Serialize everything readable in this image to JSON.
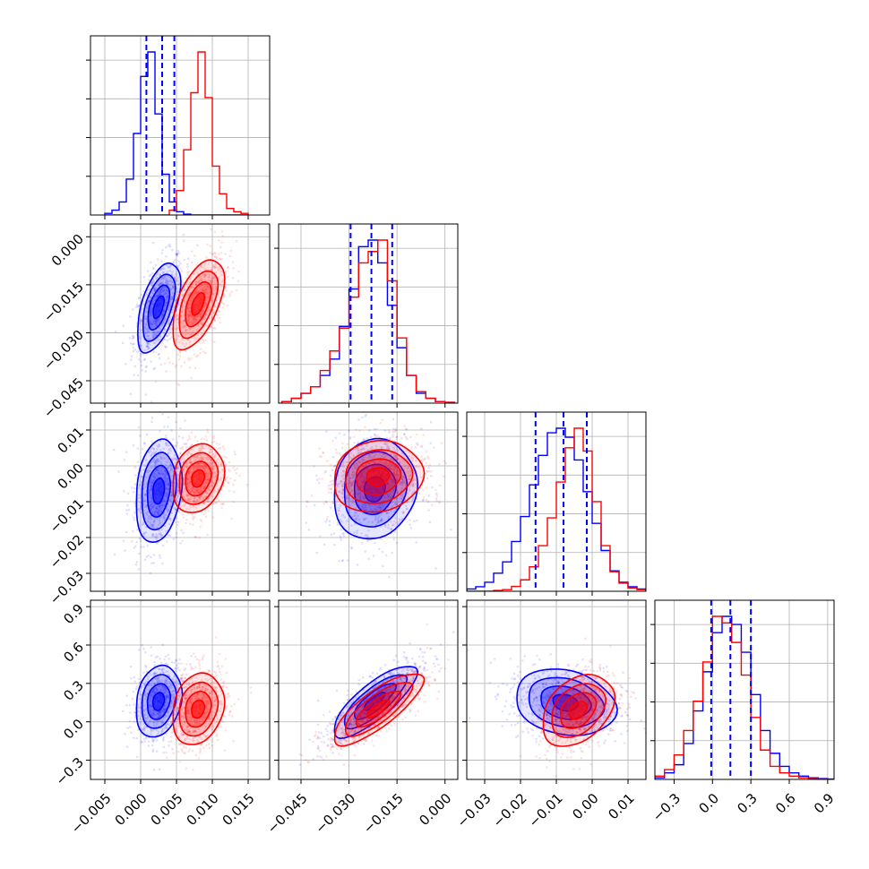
{
  "chart_data": {
    "type": "corner",
    "series": [
      {
        "name": "",
        "color": "#0000ff"
      },
      {
        "name": "",
        "color": "#ff0000"
      }
    ],
    "grid": true,
    "params": [
      {
        "range": [
          -0.007,
          0.018
        ],
        "ticks": [
          -0.005,
          0.0,
          0.005,
          0.01,
          0.015
        ],
        "tick_labels": [
          "−0.005",
          "0.000",
          "0.005",
          "0.010",
          "0.015"
        ]
      },
      {
        "range": [
          -0.052,
          0.004
        ],
        "ticks": [
          -0.045,
          -0.03,
          -0.015,
          0.0
        ],
        "tick_labels": [
          "−0.045",
          "−0.030",
          "−0.015",
          "0.000"
        ]
      },
      {
        "range": [
          -0.035,
          0.015
        ],
        "ticks": [
          -0.03,
          -0.02,
          -0.01,
          0.0,
          0.01
        ],
        "tick_labels": [
          "−0.03",
          "−0.02",
          "−0.01",
          "0.00",
          "0.01"
        ]
      },
      {
        "range": [
          -0.45,
          0.95
        ],
        "ticks": [
          -0.3,
          0.0,
          0.3,
          0.6,
          0.9
        ],
        "tick_labels": [
          "−0.3",
          "0.0",
          "0.3",
          "0.6",
          "0.9"
        ]
      }
    ],
    "quantiles": [
      [
        0.0008,
        0.003,
        0.0047
      ],
      [
        -0.0295,
        -0.023,
        -0.0165
      ],
      [
        -0.0158,
        -0.008,
        -0.0015
      ],
      [
        -0.01,
        0.14,
        0.3
      ]
    ],
    "histograms": [
      {
        "edges": [
          -0.005,
          -0.004,
          -0.003,
          -0.002,
          -0.001,
          0.0,
          0.001,
          0.002,
          0.003,
          0.004,
          0.005,
          0.006,
          0.007,
          0.008,
          0.009,
          0.01,
          0.011,
          0.012,
          0.013,
          0.014,
          0.015
        ],
        "blue": [
          0.01,
          0.03,
          0.08,
          0.22,
          0.5,
          0.85,
          1.0,
          0.62,
          0.25,
          0.08,
          0.02,
          0.005,
          0,
          0,
          0,
          0,
          0,
          0,
          0,
          0
        ],
        "red": [
          0,
          0,
          0,
          0,
          0,
          0,
          0,
          0,
          0,
          0.03,
          0.15,
          0.4,
          0.75,
          1.0,
          0.72,
          0.3,
          0.13,
          0.04,
          0.02,
          0.01
        ]
      },
      {
        "edges": [
          -0.051,
          -0.048,
          -0.045,
          -0.042,
          -0.039,
          -0.036,
          -0.033,
          -0.03,
          -0.027,
          -0.024,
          -0.021,
          -0.018,
          -0.015,
          -0.012,
          -0.009,
          -0.006,
          -0.003,
          0.0,
          0.003
        ],
        "blue": [
          0.01,
          0.03,
          0.06,
          0.1,
          0.17,
          0.27,
          0.47,
          0.7,
          0.96,
          1.0,
          0.86,
          0.6,
          0.34,
          0.17,
          0.06,
          0.03,
          0.01,
          0.005
        ],
        "red": [
          0.01,
          0.03,
          0.06,
          0.1,
          0.2,
          0.32,
          0.46,
          0.65,
          0.86,
          0.93,
          1.0,
          0.75,
          0.4,
          0.17,
          0.07,
          0.03,
          0.01,
          0.005
        ]
      },
      {
        "edges": [
          -0.035,
          -0.0325,
          -0.03,
          -0.0275,
          -0.025,
          -0.0225,
          -0.02,
          -0.0175,
          -0.015,
          -0.0125,
          -0.01,
          -0.0075,
          -0.005,
          -0.0025,
          0.0,
          0.0025,
          0.005,
          0.0075,
          0.01,
          0.0125,
          0.015
        ],
        "blue": [
          0.01,
          0.02,
          0.04,
          0.08,
          0.13,
          0.22,
          0.33,
          0.47,
          0.6,
          0.7,
          0.72,
          0.68,
          0.58,
          0.44,
          0.3,
          0.18,
          0.09,
          0.04,
          0.02,
          0.01
        ],
        "red": [
          0,
          0,
          0,
          0.005,
          0.01,
          0.03,
          0.07,
          0.15,
          0.28,
          0.45,
          0.67,
          0.88,
          1.0,
          0.86,
          0.55,
          0.28,
          0.12,
          0.05,
          0.02,
          0.01
        ]
      },
      {
        "edges": [
          -0.45,
          -0.375,
          -0.3,
          -0.225,
          -0.15,
          -0.075,
          0.0,
          0.075,
          0.15,
          0.225,
          0.3,
          0.375,
          0.45,
          0.525,
          0.6,
          0.675,
          0.75,
          0.825,
          0.9,
          0.95
        ],
        "blue": [
          0.01,
          0.04,
          0.09,
          0.22,
          0.42,
          0.66,
          0.9,
          1.0,
          0.95,
          0.78,
          0.52,
          0.3,
          0.16,
          0.08,
          0.04,
          0.02,
          0.01,
          0.005,
          0.002
        ],
        "red": [
          0.02,
          0.06,
          0.15,
          0.3,
          0.48,
          0.72,
          1.0,
          0.96,
          0.84,
          0.64,
          0.38,
          0.18,
          0.08,
          0.04,
          0.02,
          0.01,
          0.005,
          0.002,
          0
        ]
      }
    ],
    "pairs": [
      {
        "i": 1,
        "j": 0,
        "blue": {
          "center": [
            0.0025,
            -0.022
          ],
          "sd": [
            0.0015,
            0.007
          ],
          "corr": 0.55
        },
        "red": {
          "center": [
            0.008,
            -0.021
          ],
          "sd": [
            0.0018,
            0.007
          ],
          "corr": 0.55
        }
      },
      {
        "i": 2,
        "j": 0,
        "blue": {
          "center": [
            0.0025,
            -0.007
          ],
          "sd": [
            0.0016,
            0.0072
          ],
          "corr": 0.2
        },
        "red": {
          "center": [
            0.008,
            -0.0035
          ],
          "sd": [
            0.0018,
            0.0048
          ],
          "corr": 0.2
        }
      },
      {
        "i": 2,
        "j": 1,
        "blue": {
          "center": [
            -0.022,
            -0.0065
          ],
          "sd": [
            0.0065,
            0.007
          ],
          "corr": 0.1
        },
        "red": {
          "center": [
            -0.021,
            -0.003
          ],
          "sd": [
            0.007,
            0.005
          ],
          "corr": 0.1
        }
      },
      {
        "i": 3,
        "j": 0,
        "blue": {
          "center": [
            0.0025,
            0.16
          ],
          "sd": [
            0.0016,
            0.14
          ],
          "corr": 0.2
        },
        "red": {
          "center": [
            0.008,
            0.1
          ],
          "sd": [
            0.0018,
            0.14
          ],
          "corr": 0.2
        }
      },
      {
        "i": 3,
        "j": 1,
        "blue": {
          "center": [
            -0.022,
            0.16
          ],
          "sd": [
            0.0065,
            0.14
          ],
          "corr": 0.8
        },
        "red": {
          "center": [
            -0.021,
            0.1
          ],
          "sd": [
            0.007,
            0.14
          ],
          "corr": 0.8
        }
      },
      {
        "i": 3,
        "j": 2,
        "blue": {
          "center": [
            -0.0075,
            0.15
          ],
          "sd": [
            0.007,
            0.13
          ],
          "corr": -0.2
        },
        "red": {
          "center": [
            -0.004,
            0.09
          ],
          "sd": [
            0.005,
            0.14
          ],
          "corr": 0.35
        }
      }
    ]
  }
}
